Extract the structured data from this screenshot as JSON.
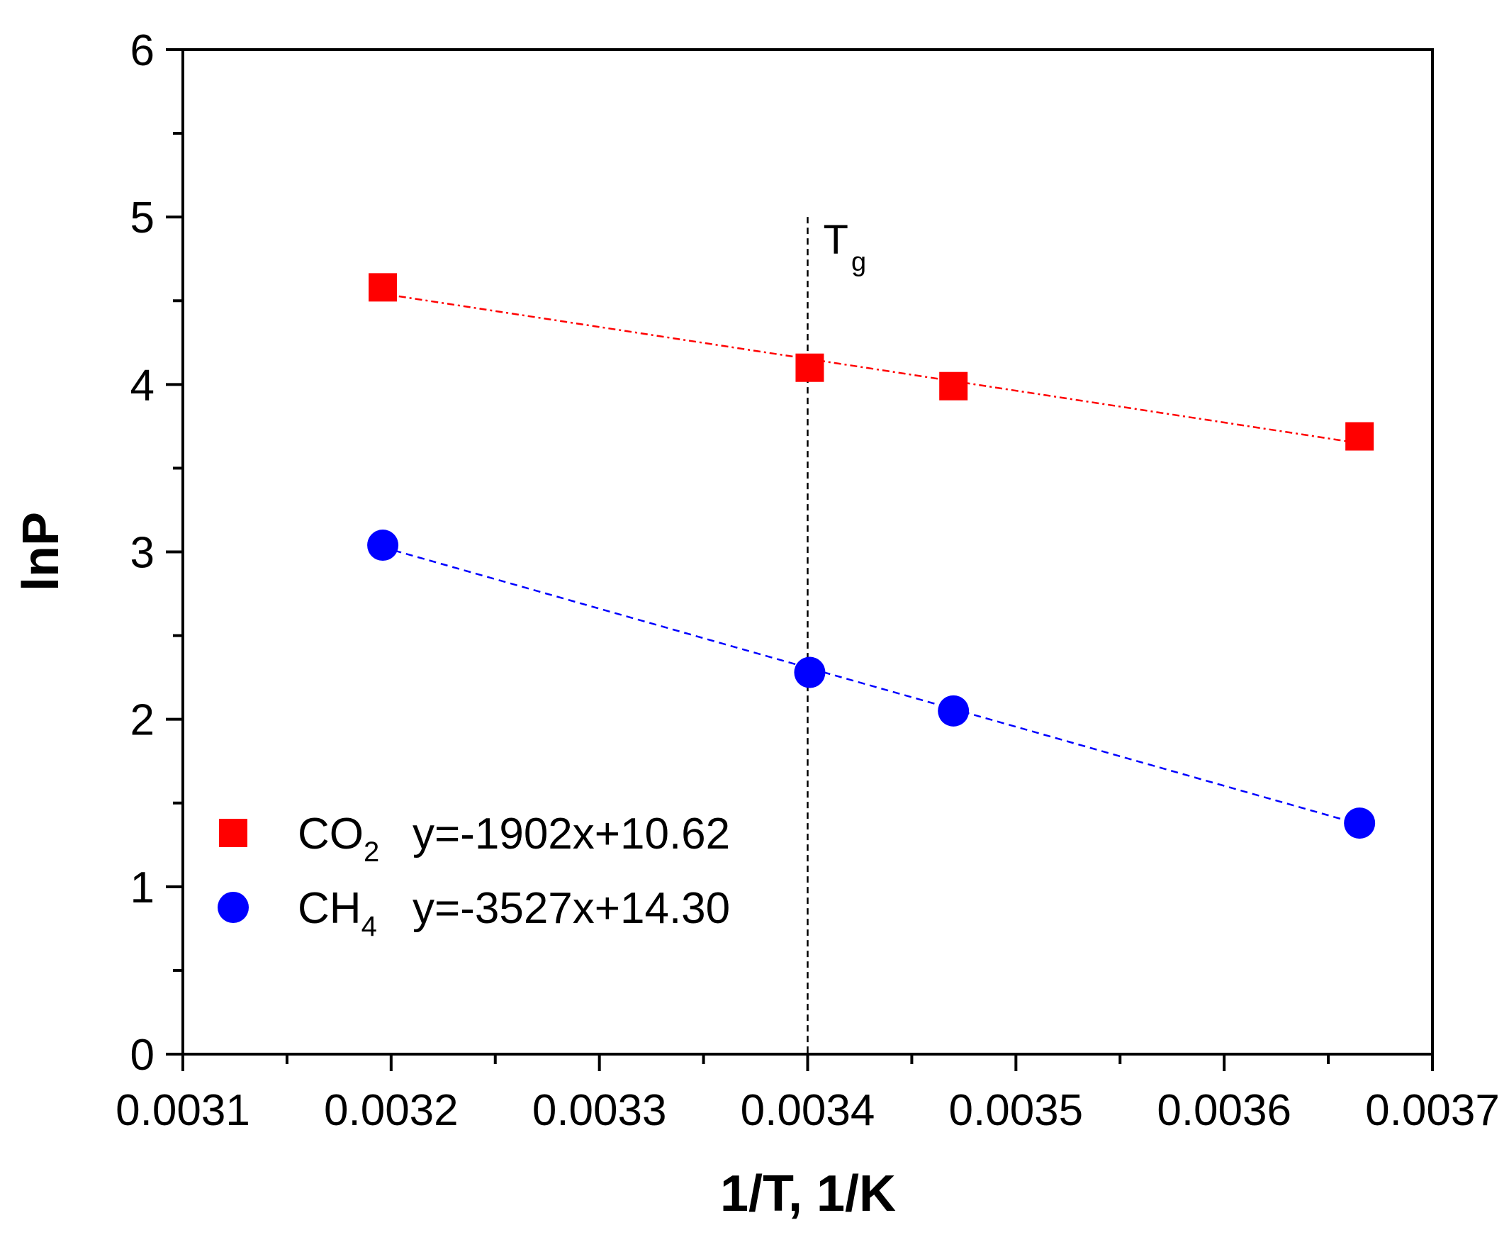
{
  "chart_data": {
    "type": "scatter",
    "title": "",
    "xlabel": "1/T, 1/K",
    "ylabel": "lnP",
    "xlim": [
      0.0031,
      0.0037
    ],
    "ylim": [
      0,
      6
    ],
    "grid": false,
    "legend_position": "bottom-left",
    "x_ticks": [
      "0.0031",
      "0.0032",
      "0.0033",
      "0.0034",
      "0.0035",
      "0.0036",
      "0.0037"
    ],
    "y_ticks": [
      "0",
      "1",
      "2",
      "3",
      "4",
      "5",
      "6"
    ],
    "series": [
      {
        "name": "CO",
        "subscript": "2",
        "equation": "y=-1902x+10.62",
        "marker": "square",
        "color": "#ff0000",
        "x": [
          0.003196,
          0.003401,
          0.00347,
          0.003665
        ],
        "y": [
          4.58,
          4.1,
          3.99,
          3.69
        ],
        "fit": {
          "slope": -1902,
          "intercept": 10.62
        }
      },
      {
        "name": "CH",
        "subscript": "4",
        "equation": "y=-3527x+14.30",
        "marker": "circle",
        "color": "#0000ff",
        "x": [
          0.003196,
          0.003401,
          0.00347,
          0.003665
        ],
        "y": [
          3.04,
          2.28,
          2.05,
          1.38
        ],
        "fit": {
          "slope": -3527,
          "intercept": 14.3
        }
      }
    ],
    "annotations": [
      {
        "type": "vline",
        "x": 0.0034,
        "y_top": 5.0,
        "label": "T",
        "subscript": "g"
      }
    ]
  }
}
